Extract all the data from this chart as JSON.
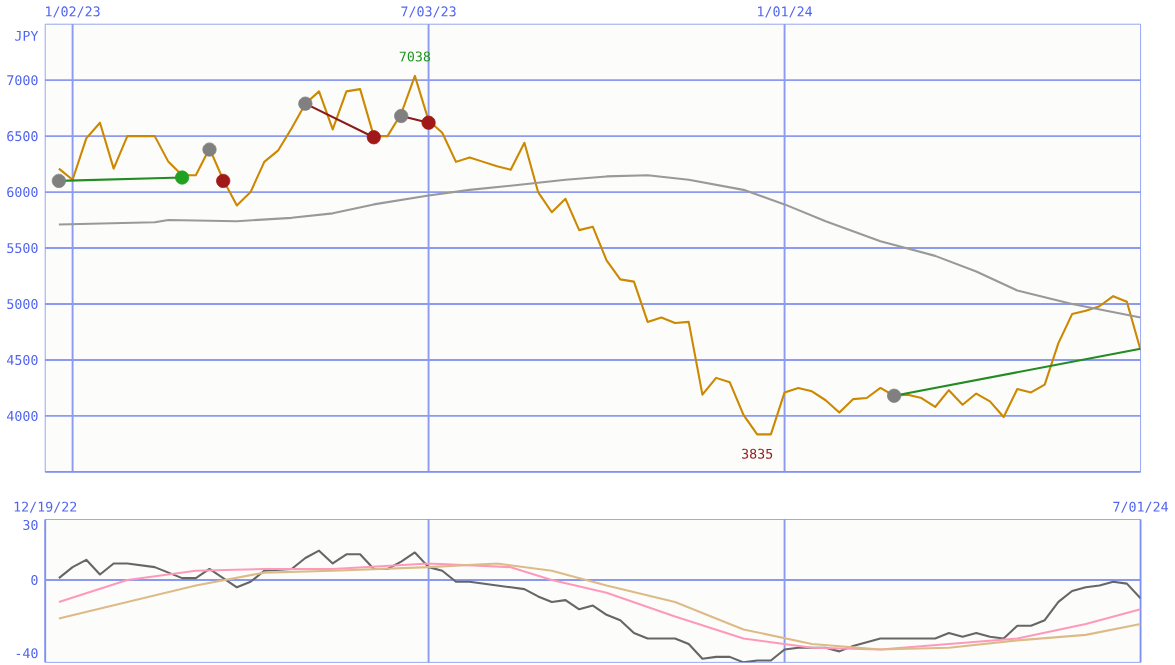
{
  "chart_data": [
    {
      "type": "line",
      "ylabel": "JPY",
      "grid": true,
      "xlim": [
        "2022-12-19",
        "2024-07-01"
      ],
      "ylim": [
        3500,
        7500
      ],
      "xticks": [
        {
          "value": "2023-01-02",
          "label": "1/02/23"
        },
        {
          "value": "2023-07-03",
          "label": "7/03/23"
        },
        {
          "value": "2024-01-01",
          "label": "1/01/24"
        }
      ],
      "yticks": [
        {
          "value": 3500,
          "label": null
        },
        4000,
        4500,
        5000,
        5500,
        6000,
        6500,
        7000
      ],
      "x": [
        "2022-12-26",
        "2023-01-02",
        "2023-01-09",
        "2023-01-16",
        "2023-01-23",
        "2023-01-30",
        "2023-02-06",
        "2023-02-13",
        "2023-02-20",
        "2023-02-27",
        "2023-03-06",
        "2023-03-13",
        "2023-03-20",
        "2023-03-27",
        "2023-04-03",
        "2023-04-10",
        "2023-04-17",
        "2023-04-24",
        "2023-05-01",
        "2023-05-08",
        "2023-05-15",
        "2023-05-22",
        "2023-05-29",
        "2023-06-05",
        "2023-06-12",
        "2023-06-19",
        "2023-06-26",
        "2023-07-03",
        "2023-07-10",
        "2023-07-17",
        "2023-07-24",
        "2023-07-31",
        "2023-08-07",
        "2023-08-14",
        "2023-08-21",
        "2023-08-28",
        "2023-09-04",
        "2023-09-11",
        "2023-09-18",
        "2023-09-25",
        "2023-10-02",
        "2023-10-09",
        "2023-10-16",
        "2023-10-23",
        "2023-10-30",
        "2023-11-06",
        "2023-11-13",
        "2023-11-20",
        "2023-11-27",
        "2023-12-04",
        "2023-12-11",
        "2023-12-18",
        "2023-12-25",
        "2024-01-01",
        "2024-01-08",
        "2024-01-15",
        "2024-01-22",
        "2024-01-29",
        "2024-02-05",
        "2024-02-12",
        "2024-02-19",
        "2024-02-26",
        "2024-03-04",
        "2024-03-11",
        "2024-03-18",
        "2024-03-25",
        "2024-04-01",
        "2024-04-08",
        "2024-04-15",
        "2024-04-22",
        "2024-04-29",
        "2024-05-06",
        "2024-05-13",
        "2024-05-20",
        "2024-05-27",
        "2024-06-03",
        "2024-06-10",
        "2024-06-17",
        "2024-06-24",
        "2024-07-01"
      ],
      "series": [
        {
          "color": "#cc8800",
          "values": [
            6210,
            6110,
            6480,
            6620,
            6210,
            6500,
            6500,
            6500,
            6270,
            6150,
            6150,
            6390,
            6110,
            5880,
            6000,
            6270,
            6370,
            6570,
            6790,
            6900,
            6560,
            6900,
            6920,
            6500,
            6500,
            6700,
            7038,
            6640,
            6530,
            6270,
            6310,
            6270,
            6230,
            6200,
            6440,
            6000,
            5820,
            5940,
            5660,
            5690,
            5390,
            5220,
            5200,
            4840,
            4880,
            4830,
            4840,
            4190,
            4340,
            4300,
            4010,
            3835,
            3835,
            4210,
            4250,
            4220,
            4140,
            4030,
            4150,
            4160,
            4250,
            4180,
            4190,
            4160,
            4080,
            4230,
            4100,
            4200,
            4130,
            3990,
            4240,
            4210,
            4280,
            4650,
            4910,
            4940,
            4980,
            5070,
            5020,
            4590
          ]
        },
        {
          "color": "#999999",
          "x": [
            "2022-12-26",
            "2023-02-13",
            "2023-02-20",
            "2023-03-27",
            "2023-04-24",
            "2023-05-15",
            "2023-06-05",
            "2023-07-03",
            "2023-07-24",
            "2023-08-21",
            "2023-09-11",
            "2023-10-02",
            "2023-10-23",
            "2023-11-13",
            "2023-12-11",
            "2024-01-01",
            "2024-01-22",
            "2024-02-19",
            "2024-03-18",
            "2024-04-08",
            "2024-04-29",
            "2024-05-27",
            "2024-07-01"
          ],
          "values": [
            5710,
            5730,
            5750,
            5740,
            5770,
            5810,
            5890,
            5970,
            6020,
            6070,
            6110,
            6140,
            6150,
            6110,
            6020,
            5890,
            5740,
            5560,
            5430,
            5290,
            5120,
            5000,
            4880
          ]
        },
        {
          "color": "#228b22",
          "x": [
            "2022-12-26",
            "2023-02-27"
          ],
          "values": [
            6100,
            6130
          ]
        },
        {
          "color": "#8b1a1a",
          "x": [
            "2023-05-01",
            "2023-06-05"
          ],
          "values": [
            6790,
            6490
          ]
        },
        {
          "color": "#8b1a1a",
          "x": [
            "2023-06-19",
            "2023-07-03"
          ],
          "values": [
            6680,
            6620
          ]
        },
        {
          "color": "#228b22",
          "x": [
            "2024-02-26",
            "2024-07-01"
          ],
          "values": [
            4180,
            4600
          ]
        },
        {
          "type": "scatter",
          "marker": "circle",
          "color": "#808080",
          "x": [
            "2022-12-26",
            "2023-03-13",
            "2023-05-01",
            "2023-06-19",
            "2024-02-26"
          ],
          "values": [
            6100,
            6380,
            6790,
            6680,
            4180
          ]
        },
        {
          "type": "scatter",
          "marker": "circle",
          "color": "#a01818",
          "x": [
            "2023-03-20",
            "2023-06-05",
            "2023-07-03"
          ],
          "values": [
            6100,
            6490,
            6620
          ]
        },
        {
          "type": "scatter",
          "marker": "circle",
          "color": "#22a022",
          "x": [
            "2023-02-27"
          ],
          "values": [
            6130
          ]
        }
      ],
      "annotations": [
        {
          "text": "7038",
          "x": "2023-06-26",
          "y": 7038
        },
        {
          "text": "3835",
          "x": "2023-12-18",
          "y": 3835
        }
      ]
    },
    {
      "type": "line",
      "grid": "x",
      "xlim": [
        "2022-12-19",
        "2024-07-01"
      ],
      "ylim": [
        -45,
        33
      ],
      "xticks": [
        {
          "value": "2022-12-19",
          "label": "12/19/22"
        },
        {
          "value": "2023-07-03",
          "label": null
        },
        {
          "value": "2024-01-01",
          "label": null
        },
        {
          "value": "2024-07-01",
          "label": "7/01/24"
        }
      ],
      "yticks": [
        -40,
        0,
        30
      ],
      "ref_lines": [
        {
          "axis": "y",
          "value": 0,
          "color": "#8899ee"
        }
      ],
      "x": [
        "2022-12-26",
        "2023-01-02",
        "2023-01-09",
        "2023-01-16",
        "2023-01-23",
        "2023-01-30",
        "2023-02-13",
        "2023-02-27",
        "2023-03-06",
        "2023-03-13",
        "2023-03-27",
        "2023-04-03",
        "2023-04-10",
        "2023-04-24",
        "2023-05-01",
        "2023-05-08",
        "2023-05-15",
        "2023-05-22",
        "2023-05-29",
        "2023-06-05",
        "2023-06-12",
        "2023-06-19",
        "2023-06-26",
        "2023-07-03",
        "2023-07-10",
        "2023-07-17",
        "2023-07-24",
        "2023-08-07",
        "2023-08-14",
        "2023-08-21",
        "2023-08-28",
        "2023-09-04",
        "2023-09-11",
        "2023-09-18",
        "2023-09-25",
        "2023-10-02",
        "2023-10-09",
        "2023-10-16",
        "2023-10-23",
        "2023-10-30",
        "2023-11-06",
        "2023-11-13",
        "2023-11-20",
        "2023-11-27",
        "2023-12-04",
        "2023-12-11",
        "2023-12-18",
        "2023-12-25",
        "2024-01-01",
        "2024-01-08",
        "2024-01-22",
        "2024-01-29",
        "2024-02-05",
        "2024-02-12",
        "2024-02-19",
        "2024-03-04",
        "2024-03-18",
        "2024-03-25",
        "2024-04-01",
        "2024-04-08",
        "2024-04-15",
        "2024-04-22",
        "2024-04-29",
        "2024-05-06",
        "2024-05-13",
        "2024-05-20",
        "2024-05-27",
        "2024-06-03",
        "2024-06-10",
        "2024-06-17",
        "2024-06-24",
        "2024-07-01"
      ],
      "series": [
        {
          "color": "#666666",
          "values": [
            1,
            7,
            11,
            3,
            9,
            9,
            7,
            1,
            1,
            6,
            -4,
            -1,
            5,
            6,
            12,
            16,
            9,
            14,
            14,
            6,
            6,
            10,
            15,
            7,
            5,
            -1,
            -1,
            -3,
            -4,
            -5,
            -9,
            -12,
            -11,
            -16,
            -14,
            -19,
            -22,
            -29,
            -32,
            -32,
            -32,
            -35,
            -43,
            -42,
            -42,
            -45,
            -44,
            -44,
            -38,
            -37,
            -37,
            -39,
            -36,
            -34,
            -32,
            -32,
            -32,
            -29,
            -31,
            -29,
            -31,
            -32,
            -25,
            -25,
            -22,
            -12,
            -6,
            -4,
            -3,
            -1,
            -2,
            -10
          ]
        },
        {
          "color": "#ff99bb",
          "x": [
            "2022-12-26",
            "2023-01-30",
            "2023-03-06",
            "2023-04-10",
            "2023-05-15",
            "2023-07-03",
            "2023-08-14",
            "2023-09-04",
            "2023-10-02",
            "2023-11-06",
            "2023-12-11",
            "2024-01-15",
            "2024-02-19",
            "2024-03-25",
            "2024-04-29",
            "2024-06-03",
            "2024-07-01"
          ],
          "values": [
            -12,
            0,
            5,
            6,
            6,
            9,
            7,
            0,
            -7,
            -20,
            -32,
            -37,
            -38,
            -35,
            -32,
            -24,
            -16
          ]
        },
        {
          "color": "#ddbb88",
          "x": [
            "2022-12-26",
            "2023-01-30",
            "2023-03-06",
            "2023-04-10",
            "2023-05-15",
            "2023-07-03",
            "2023-08-07",
            "2023-09-04",
            "2023-10-02",
            "2023-11-06",
            "2023-12-11",
            "2024-01-15",
            "2024-02-19",
            "2024-03-25",
            "2024-04-29",
            "2024-06-03",
            "2024-07-01"
          ],
          "values": [
            -21,
            -12,
            -3,
            4,
            5,
            7,
            9,
            5,
            -3,
            -12,
            -27,
            -35,
            -38,
            -37,
            -33,
            -30,
            -24
          ]
        }
      ]
    }
  ]
}
